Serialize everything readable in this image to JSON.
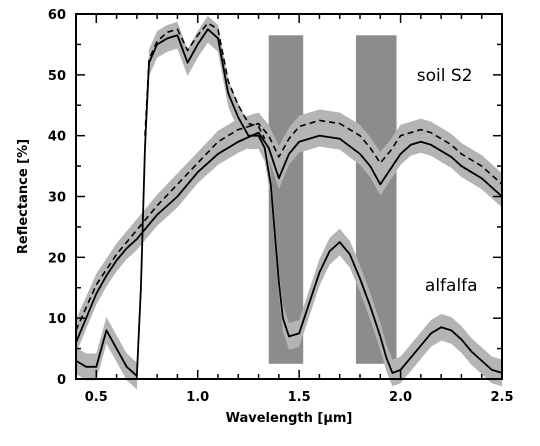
{
  "chart_data": {
    "type": "line",
    "title": "",
    "xlabel": "Wavelength [μm]",
    "ylabel": "Reflectance [%]",
    "xlim": [
      0.4,
      2.5
    ],
    "ylim": [
      0,
      60
    ],
    "xticks": [
      0.5,
      1.0,
      1.5,
      2.0,
      2.5
    ],
    "xtick_labels": [
      "0.5",
      "1.0",
      "1.5",
      "2.0",
      "2.5"
    ],
    "yticks": [
      0,
      10,
      20,
      30,
      40,
      50,
      60
    ],
    "ytick_labels": [
      "0",
      "10",
      "20",
      "30",
      "40",
      "50",
      "60"
    ],
    "grid": false,
    "absorption_bands": [
      {
        "x0": 1.35,
        "x1": 1.52,
        "y0": 2.5,
        "y1": 56.5
      },
      {
        "x0": 1.78,
        "x1": 1.98,
        "y0": 2.5,
        "y1": 56.5
      }
    ],
    "series": [
      {
        "name": "soil S2",
        "style": "solid",
        "band": 1.8,
        "x": [
          0.4,
          0.45,
          0.5,
          0.55,
          0.6,
          0.65,
          0.7,
          0.75,
          0.8,
          0.9,
          1.0,
          1.1,
          1.2,
          1.3,
          1.35,
          1.4,
          1.45,
          1.5,
          1.55,
          1.6,
          1.7,
          1.8,
          1.85,
          1.9,
          1.95,
          2.0,
          2.05,
          2.1,
          2.15,
          2.2,
          2.25,
          2.3,
          2.35,
          2.4,
          2.45,
          2.5
        ],
        "y": [
          6,
          10,
          14,
          17,
          19.5,
          21.5,
          23,
          25,
          27,
          30,
          34,
          37,
          39,
          40.5,
          38,
          33,
          37,
          39,
          39.5,
          40,
          39.5,
          37,
          35,
          32,
          34.5,
          37,
          38.5,
          39,
          38.5,
          37.5,
          36.5,
          35,
          34,
          33,
          31.5,
          30
        ]
      },
      {
        "name": "soil S2",
        "style": "dashed",
        "band": 1.8,
        "x": [
          0.4,
          0.5,
          0.6,
          0.7,
          0.8,
          0.9,
          1.0,
          1.1,
          1.2,
          1.3,
          1.35,
          1.4,
          1.45,
          1.5,
          1.55,
          1.6,
          1.7,
          1.8,
          1.85,
          1.9,
          1.95,
          2.0,
          2.05,
          2.1,
          2.15,
          2.2,
          2.25,
          2.3,
          2.35,
          2.4,
          2.45,
          2.5
        ],
        "y": [
          8,
          15.5,
          20.5,
          24.5,
          28.5,
          32,
          35.5,
          39,
          41,
          42,
          40,
          36.5,
          39.5,
          41.5,
          42,
          42.5,
          42,
          40,
          38,
          35.5,
          37.5,
          40,
          40.5,
          41,
          40.5,
          39.5,
          38.5,
          37,
          36,
          35,
          33.5,
          32
        ]
      },
      {
        "name": "alfalfa",
        "style": "solid",
        "band": 2.2,
        "x": [
          0.4,
          0.45,
          0.5,
          0.55,
          0.6,
          0.65,
          0.7,
          0.72,
          0.74,
          0.76,
          0.8,
          0.85,
          0.9,
          0.95,
          1.0,
          1.05,
          1.1,
          1.15,
          1.2,
          1.25,
          1.3,
          1.33,
          1.36,
          1.38,
          1.4,
          1.42,
          1.45,
          1.5,
          1.55,
          1.6,
          1.65,
          1.7,
          1.75,
          1.8,
          1.85,
          1.9,
          1.93,
          1.96,
          2.0,
          2.05,
          2.1,
          2.15,
          2.2,
          2.25,
          2.3,
          2.35,
          2.4,
          2.45,
          2.5
        ],
        "y": [
          3,
          2,
          2,
          8,
          5,
          2,
          0.5,
          15,
          38,
          52,
          55,
          56,
          56.5,
          52,
          55,
          57.5,
          56,
          47,
          43,
          40,
          40,
          38,
          32,
          24,
          16,
          10,
          7,
          7.5,
          12.5,
          17.5,
          21,
          22.5,
          20.5,
          16.5,
          12,
          7,
          3.5,
          1,
          1.5,
          3.5,
          5.5,
          7.5,
          8.5,
          8,
          6.5,
          4.5,
          3,
          1.5,
          1
        ]
      },
      {
        "name": "alfalfa",
        "style": "dashed",
        "band": 0,
        "x": [
          0.74,
          0.76,
          0.8,
          0.85,
          0.9,
          0.95,
          1.0,
          1.05,
          1.1,
          1.15,
          1.2,
          1.25,
          1.3,
          1.33
        ],
        "y": [
          40,
          52.5,
          55.5,
          57,
          57.5,
          54,
          56.5,
          58.5,
          57.5,
          49,
          45,
          42,
          41.5,
          39.5
        ]
      }
    ],
    "annotations": [
      {
        "text": "soil S2",
        "x": 2.08,
        "y": 49
      },
      {
        "text": "alfalfa",
        "x": 2.12,
        "y": 14.5
      }
    ]
  }
}
